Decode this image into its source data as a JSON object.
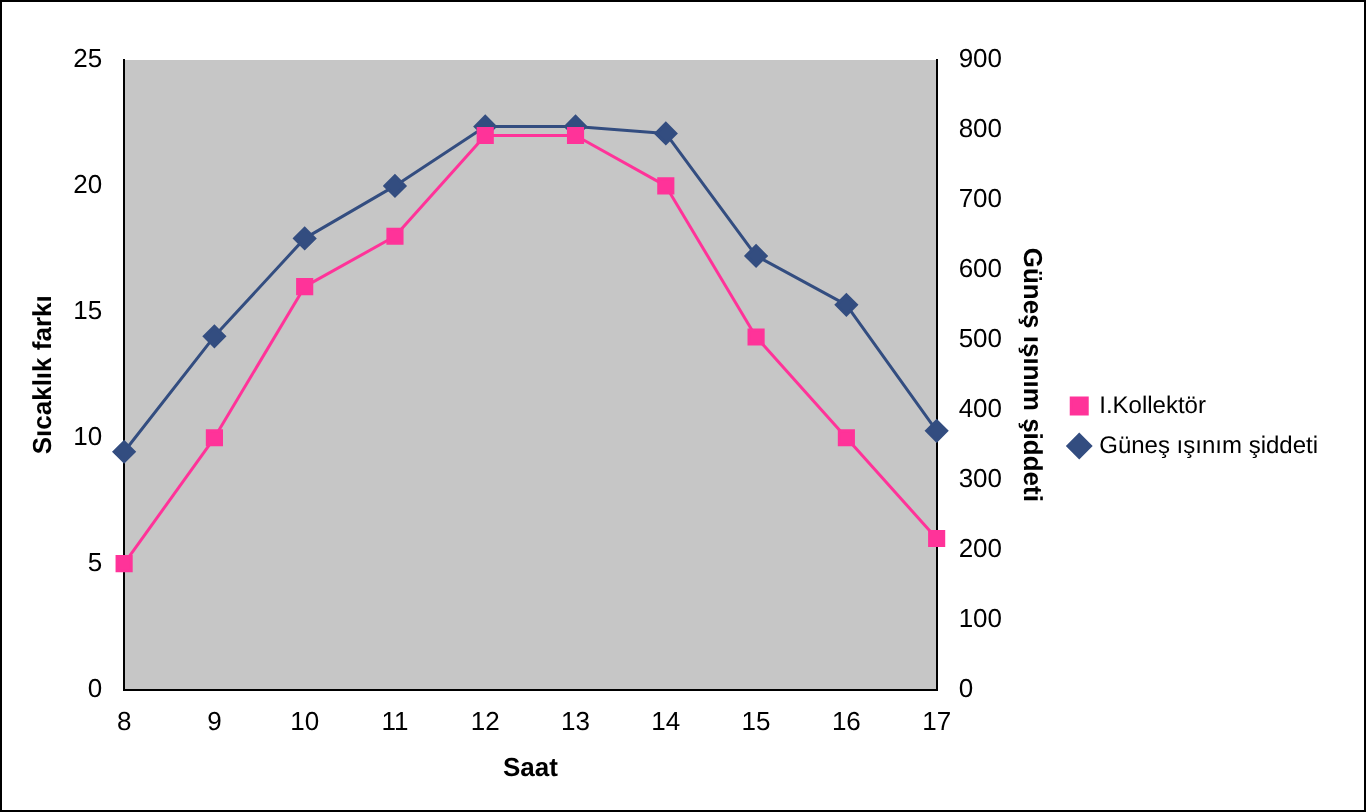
{
  "chart_data": {
    "type": "line",
    "xlabel": "Saat",
    "ylabel": "Sıcaklık farkı",
    "y2label": "Güneş ışınım şiddeti",
    "categories": [
      "8",
      "9",
      "10",
      "11",
      "12",
      "13",
      "14",
      "15",
      "16",
      "17"
    ],
    "series": [
      {
        "name": "I.Kollektör",
        "color": "#ff3399",
        "marker": "square",
        "values": [
          5,
          10,
          16,
          18,
          22,
          22,
          20,
          14,
          10,
          6
        ]
      },
      {
        "name": "Güneş ışınım şiddeti",
        "color": "#334d80",
        "marker": "diamond",
        "axis": "y2",
        "values": [
          340,
          505,
          645,
          720,
          805,
          805,
          795,
          620,
          550,
          370
        ]
      }
    ],
    "ylim": [
      0,
      25
    ],
    "yticks": [
      0,
      5,
      10,
      15,
      20,
      25
    ],
    "y2lim": [
      0,
      900
    ],
    "y2ticks": [
      0,
      100,
      200,
      300,
      400,
      500,
      600,
      700,
      800,
      900
    ],
    "grid": false,
    "legend": "right",
    "line_style": "solid"
  }
}
